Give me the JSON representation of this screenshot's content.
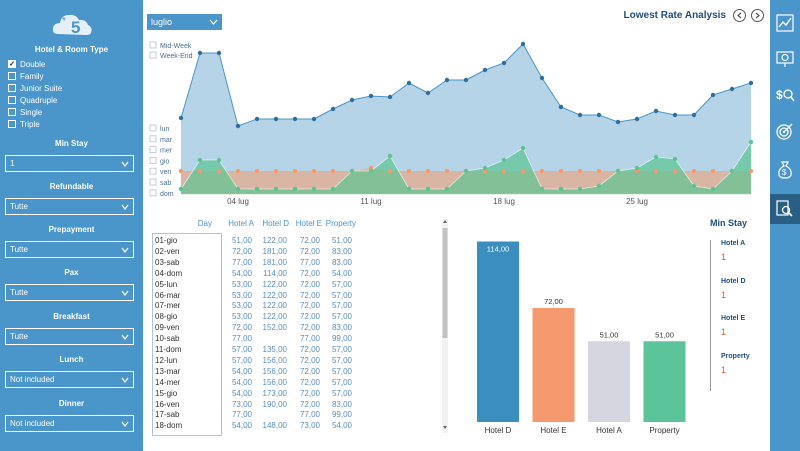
{
  "sidebar": {
    "hotel_room_title": "Hotel & Room Type",
    "room_types": [
      {
        "label": "Double",
        "checked": true
      },
      {
        "label": "Family",
        "checked": false
      },
      {
        "label": "Junior Suite",
        "checked": false
      },
      {
        "label": "Quadruple",
        "checked": false
      },
      {
        "label": "Single",
        "checked": false
      },
      {
        "label": "Triple",
        "checked": false
      }
    ],
    "filters": [
      {
        "title": "Min Stay",
        "value": "1"
      },
      {
        "title": "Refundable",
        "value": "Tutte"
      },
      {
        "title": "Prepayment",
        "value": "Tutte"
      },
      {
        "title": "Pax",
        "value": "Tutte"
      },
      {
        "title": "Breakfast",
        "value": "Tutte"
      },
      {
        "title": "Lunch",
        "value": "Not included"
      },
      {
        "title": "Dinner",
        "value": "Not included"
      }
    ]
  },
  "header": {
    "month": "luglio",
    "title": "Lowest Rate Analysis"
  },
  "top_chart": {
    "legend_week": [
      "Mid-Week",
      "Week-End"
    ],
    "legend_days": [
      "lun",
      "mar",
      "mer",
      "gio",
      "ven",
      "sab",
      "dom"
    ],
    "x_ticks": [
      "04 lug",
      "11 lug",
      "18 lug",
      "25 lug"
    ],
    "colors": {
      "blue": "#a8cce3",
      "blue_line": "#4a95c9",
      "orange": "#f59a6e",
      "green": "#5cc493"
    }
  },
  "table": {
    "headers": [
      "Day",
      "Hotel A",
      "Hotel D",
      "Hotel E",
      "Property"
    ],
    "rows": [
      [
        "01-gio",
        "51,00",
        "122,00",
        "72,00",
        "51,00"
      ],
      [
        "02-ven",
        "72,00",
        "181,00",
        "72,00",
        "83,00"
      ],
      [
        "03-sab",
        "77,00",
        "181,00",
        "77,00",
        "83,00"
      ],
      [
        "04-dom",
        "54,00",
        "114,00",
        "72,00",
        "54,00"
      ],
      [
        "05-lun",
        "53,00",
        "122,00",
        "72,00",
        "57,00"
      ],
      [
        "06-mar",
        "53,00",
        "122,00",
        "72,00",
        "57,00"
      ],
      [
        "07-mer",
        "53,00",
        "122,00",
        "72,00",
        "57,00"
      ],
      [
        "08-gio",
        "53,00",
        "122,00",
        "72,00",
        "57,00"
      ],
      [
        "09-ven",
        "72,00",
        "152,00",
        "72,00",
        "83,00"
      ],
      [
        "10-sab",
        "77,00",
        "",
        "77,00",
        "99,00"
      ],
      [
        "11-dom",
        "57,00",
        "135,00",
        "72,00",
        "57,00"
      ],
      [
        "12-lun",
        "57,00",
        "156,00",
        "72,00",
        "57,00"
      ],
      [
        "13-mar",
        "54,00",
        "156,00",
        "72,00",
        "57,00"
      ],
      [
        "14-mer",
        "54,00",
        "156,00",
        "72,00",
        "57,00"
      ],
      [
        "15-gio",
        "54,00",
        "173,00",
        "72,00",
        "57,00"
      ],
      [
        "16-ven",
        "73,00",
        "190,00",
        "72,00",
        "83,00"
      ],
      [
        "17-sab",
        "77,00",
        "",
        "77,00",
        "99,00"
      ],
      [
        "18-dom",
        "54,00",
        "148,00",
        "73,00",
        "54,00"
      ]
    ]
  },
  "chart_data": {
    "type": "bar",
    "categories": [
      "Hotel D",
      "Hotel E",
      "Hotel A",
      "Property"
    ],
    "values": [
      114.0,
      72.0,
      51.0,
      51.0
    ],
    "value_labels": [
      "114,00",
      "72,00",
      "51,00",
      "51,00"
    ],
    "colors": [
      "#3a8fc0",
      "#f59a6e",
      "#d6d6e0",
      "#5cc49a"
    ],
    "ylim": [
      0,
      120
    ]
  },
  "min_stay": {
    "title": "Min Stay",
    "items": [
      {
        "label": "Hotel A",
        "value": "1"
      },
      {
        "label": "Hotel D",
        "value": "1"
      },
      {
        "label": "Hotel E",
        "value": "1"
      },
      {
        "label": "Property",
        "value": "1"
      }
    ]
  },
  "iconbar": [
    "trend-chart-icon",
    "presentation-icon",
    "money-search-icon",
    "target-icon",
    "money-bag-icon",
    "report-search-icon"
  ]
}
